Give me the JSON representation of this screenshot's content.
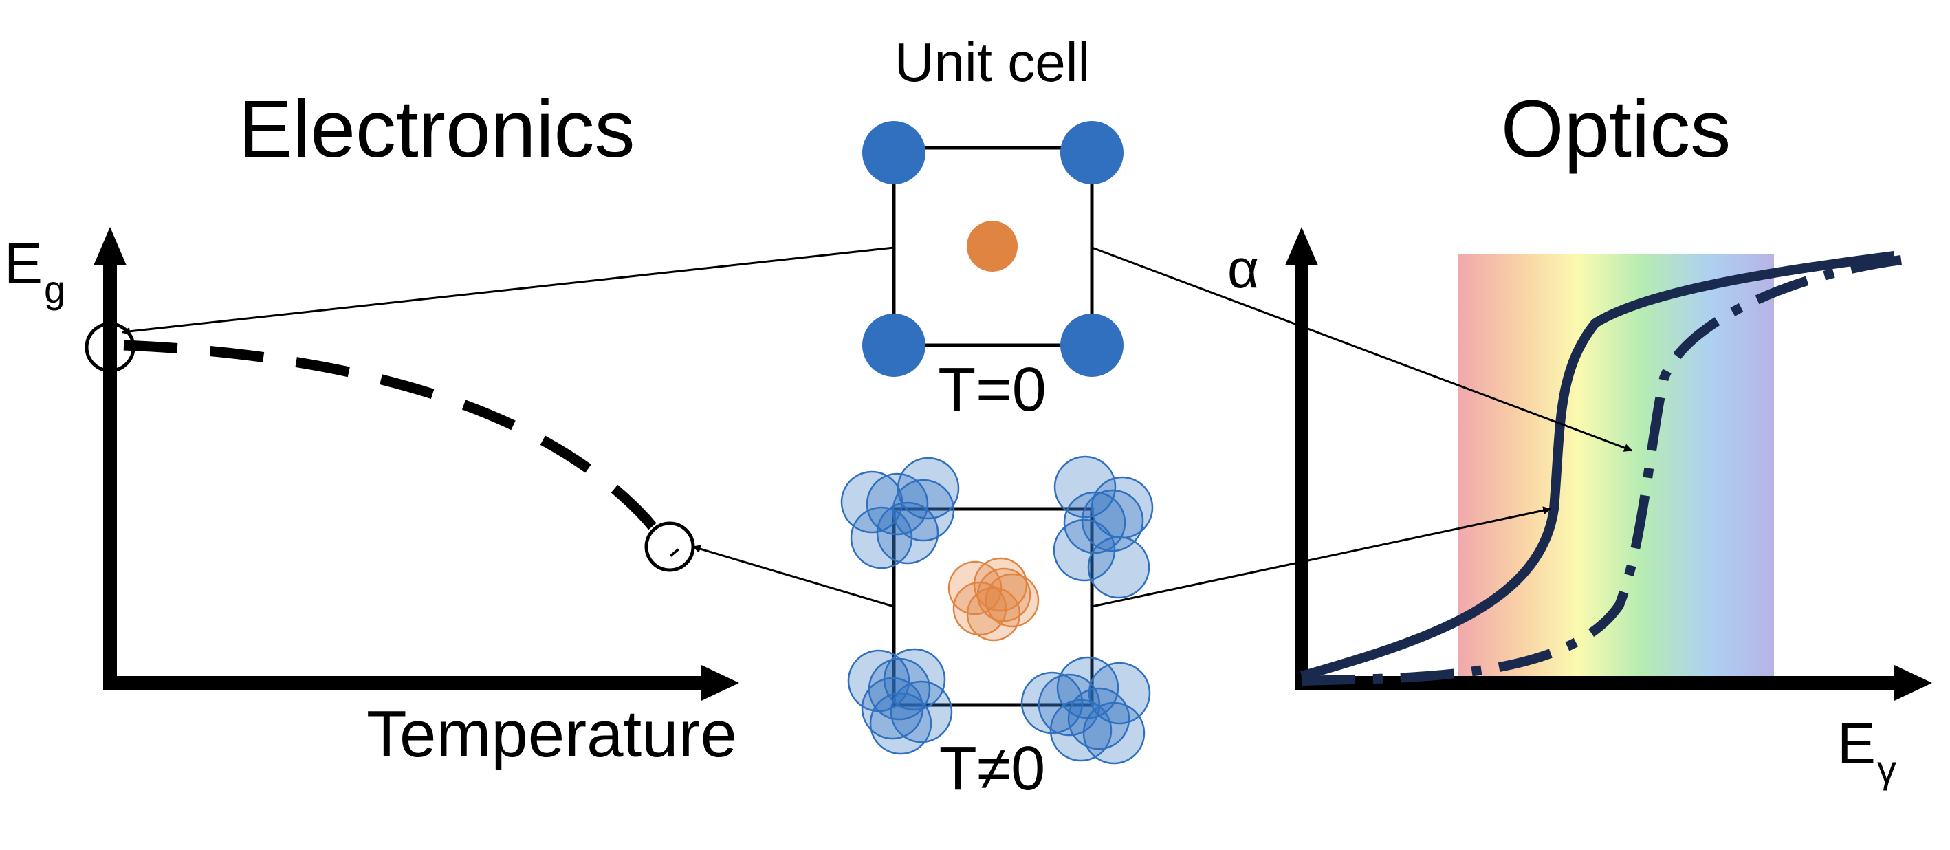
{
  "electronics": {
    "title": "Electronics",
    "y_axis_label": "E",
    "y_axis_subscript": "g",
    "x_axis_label": "Temperature"
  },
  "optics": {
    "title": "Optics",
    "y_axis_label": "α",
    "x_axis_label": "E",
    "x_axis_subscript": "γ"
  },
  "unit_cell": {
    "title": "Unit cell",
    "static_label": "T=0",
    "thermal_label": "T≠0"
  },
  "colors": {
    "atom_corner": "#3070bf",
    "atom_center": "#e08442",
    "curve": "#1a2a4f",
    "axis": "#000000"
  }
}
